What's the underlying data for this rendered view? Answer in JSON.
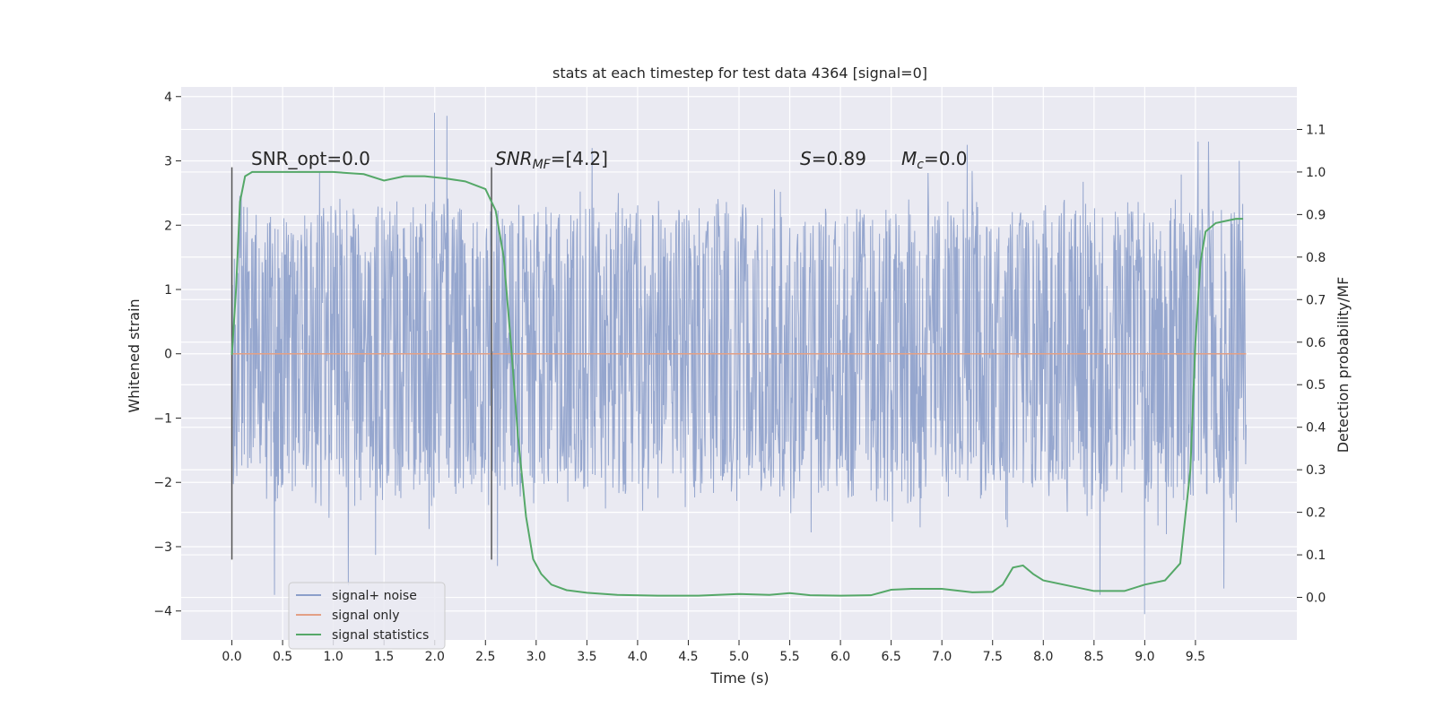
{
  "chart_data": {
    "type": "line",
    "title": "stats at each timestep for test data 4364 [signal=0]",
    "xlabel": "Time (s)",
    "ylabel": "Whitened strain",
    "y2label": "Detection probability/MF",
    "xlim": [
      -0.5,
      10.5
    ],
    "ylim": [
      -4.45,
      4.15
    ],
    "y2lim": [
      -0.1,
      1.2
    ],
    "x_ticks": [
      0.0,
      0.5,
      1.0,
      1.5,
      2.0,
      2.5,
      3.0,
      3.5,
      4.0,
      4.5,
      5.0,
      5.5,
      6.0,
      6.5,
      7.0,
      7.5,
      8.0,
      8.5,
      9.0,
      9.5
    ],
    "x_tick_labels": [
      "0.0",
      "0.5",
      "1.0",
      "1.5",
      "2.0",
      "2.5",
      "3.0",
      "3.5",
      "4.0",
      "4.5",
      "5.0",
      "5.5",
      "6.0",
      "6.5",
      "7.0",
      "7.5",
      "8.0",
      "8.5",
      "9.0",
      "9.5"
    ],
    "y_ticks": [
      -4,
      -3,
      -2,
      -1,
      0,
      1,
      2,
      3,
      4
    ],
    "y_tick_labels": [
      "−4",
      "−3",
      "−2",
      "−1",
      "0",
      "1",
      "2",
      "3",
      "4"
    ],
    "y2_ticks": [
      0.0,
      0.1,
      0.2,
      0.3,
      0.4,
      0.5,
      0.6,
      0.7,
      0.8,
      0.9,
      1.0,
      1.1
    ],
    "y2_tick_labels": [
      "0.0",
      "0.1",
      "0.2",
      "0.3",
      "0.4",
      "0.5",
      "0.6",
      "0.7",
      "0.8",
      "0.9",
      "1.0",
      "1.1"
    ],
    "grid": true,
    "legend_position": "lower-left",
    "annotations": {
      "snr_opt": "SNR_opt=0.0",
      "snr_mf_main": "SNR",
      "snr_mf_sub": "MF",
      "snr_mf_val": "=[4.2]",
      "s_label": "S",
      "s_val": "=0.89",
      "mc_main": "M",
      "mc_sub": "c",
      "mc_val": "=0.0"
    },
    "vertical_markers": [
      0.0,
      2.56
    ],
    "series": [
      {
        "name": "signal+ noise",
        "color": "#8c9fca",
        "axis": "left",
        "x_range": [
          0.0,
          10.0
        ],
        "envelope_upper_typical": 2.3,
        "envelope_lower_typical": -2.3,
        "peaks": [
          [
            1.15,
            -3.6
          ],
          [
            0.42,
            -3.75
          ],
          [
            2.0,
            3.75
          ],
          [
            2.12,
            3.7
          ],
          [
            3.55,
            3.2
          ],
          [
            9.0,
            -4.05
          ],
          [
            9.78,
            -3.65
          ],
          [
            8.56,
            -3.75
          ],
          [
            7.25,
            3.25
          ],
          [
            9.93,
            3.0
          ]
        ]
      },
      {
        "name": "signal only",
        "color": "#e3a086",
        "axis": "left",
        "x": [
          0.0,
          10.0
        ],
        "y": [
          0.0,
          0.0
        ]
      },
      {
        "name": "signal statistics",
        "color": "#55a868",
        "axis": "right",
        "x": [
          0.0,
          0.04,
          0.08,
          0.13,
          0.2,
          0.3,
          0.5,
          0.8,
          1.0,
          1.3,
          1.5,
          1.7,
          1.9,
          2.1,
          2.3,
          2.5,
          2.6,
          2.68,
          2.75,
          2.82,
          2.9,
          2.97,
          3.05,
          3.15,
          3.3,
          3.5,
          3.8,
          4.2,
          4.6,
          5.0,
          5.3,
          5.5,
          5.7,
          6.0,
          6.3,
          6.5,
          6.7,
          7.0,
          7.3,
          7.5,
          7.6,
          7.7,
          7.8,
          7.9,
          8.0,
          8.2,
          8.5,
          8.8,
          9.0,
          9.2,
          9.35,
          9.45,
          9.5,
          9.55,
          9.6,
          9.7,
          9.8,
          9.9,
          9.97
        ],
        "y": [
          0.57,
          0.72,
          0.93,
          0.99,
          1.0,
          1.0,
          1.0,
          1.0,
          1.0,
          0.995,
          0.98,
          0.99,
          0.99,
          0.985,
          0.978,
          0.96,
          0.91,
          0.8,
          0.6,
          0.38,
          0.19,
          0.09,
          0.055,
          0.03,
          0.017,
          0.011,
          0.006,
          0.004,
          0.004,
          0.008,
          0.006,
          0.01,
          0.005,
          0.004,
          0.005,
          0.018,
          0.02,
          0.02,
          0.012,
          0.013,
          0.03,
          0.07,
          0.075,
          0.055,
          0.04,
          0.03,
          0.015,
          0.015,
          0.03,
          0.04,
          0.08,
          0.3,
          0.6,
          0.79,
          0.86,
          0.88,
          0.885,
          0.89,
          0.89
        ]
      }
    ]
  }
}
